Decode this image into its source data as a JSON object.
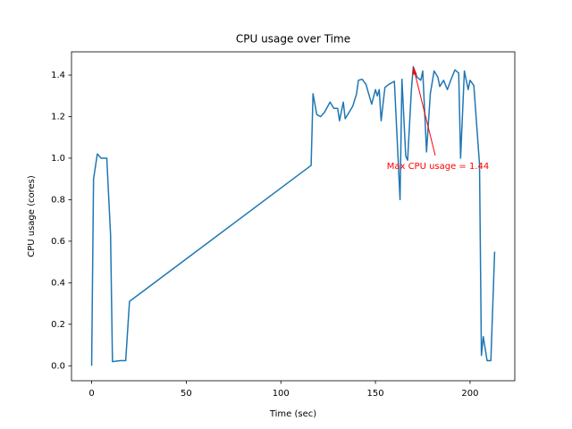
{
  "chart_data": {
    "type": "line",
    "title": "CPU usage over Time",
    "xlabel": "Time (sec)",
    "ylabel": "CPU usage (cores)",
    "annotation": "Max CPU usage = 1.44",
    "annotation_color": "#ff0000",
    "color": "#1f77b4",
    "x": [
      0,
      1,
      3,
      5,
      8,
      10,
      11,
      15,
      18,
      20,
      116,
      117,
      119,
      121,
      123,
      126,
      128,
      130,
      131,
      133,
      134,
      136,
      138,
      140,
      141,
      143,
      145,
      148,
      150,
      151,
      152,
      153,
      155,
      157,
      160,
      163,
      164,
      166,
      167,
      169,
      170,
      172,
      174,
      175,
      177,
      179,
      181,
      183,
      184,
      186,
      188,
      190,
      192,
      194,
      195,
      197,
      199,
      200,
      202,
      205,
      206,
      207,
      209,
      211,
      213
    ],
    "values": [
      0,
      0.9,
      1.02,
      1.0,
      1.0,
      0.63,
      0.02,
      0.025,
      0.025,
      0.31,
      0.965,
      1.31,
      1.21,
      1.2,
      1.22,
      1.27,
      1.24,
      1.24,
      1.18,
      1.27,
      1.19,
      1.22,
      1.25,
      1.31,
      1.375,
      1.38,
      1.355,
      1.26,
      1.33,
      1.3,
      1.33,
      1.18,
      1.34,
      1.355,
      1.37,
      0.8,
      1.38,
      1.01,
      0.99,
      1.33,
      1.44,
      1.39,
      1.375,
      1.42,
      1.03,
      1.31,
      1.42,
      1.39,
      1.345,
      1.375,
      1.33,
      1.38,
      1.425,
      1.41,
      1.0,
      1.42,
      1.33,
      1.375,
      1.35,
      0.97,
      0.05,
      0.14,
      0.025,
      0.025,
      0.55
    ],
    "xlim": [
      -10.65,
      223.65
    ],
    "ylim": [
      -0.072,
      1.512
    ],
    "xticks": [
      0,
      50,
      100,
      150,
      200
    ],
    "yticks": [
      {
        "value": 0,
        "label": "0.0"
      },
      0.2,
      0.4,
      0.6,
      0.8,
      {
        "value": 1,
        "label": "1.0"
      },
      1.2,
      1.4
    ]
  }
}
